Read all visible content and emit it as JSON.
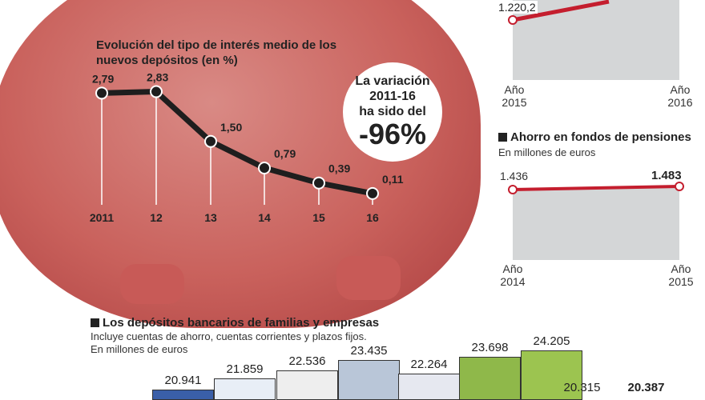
{
  "colors": {
    "line_dark": "#1e1e1e",
    "line_red": "#c41e2e",
    "panel_gray": "#d4d6d7",
    "pig_pink": "#c9615c"
  },
  "chart_data": [
    {
      "type": "line",
      "title": "Evolución del tipo de interés medio de los nuevos depósitos (en %)",
      "categories": [
        "2011",
        "12",
        "13",
        "14",
        "15",
        "16"
      ],
      "values": [
        2.79,
        2.83,
        1.5,
        0.79,
        0.39,
        0.11
      ],
      "labels": [
        "2,79",
        "2,83",
        "1,50",
        "0,79",
        "0,39",
        "0,11"
      ]
    },
    {
      "type": "area",
      "categories": [
        "Año 2015",
        "Año 2016"
      ],
      "labels": [
        "1.220,2"
      ],
      "values": [
        1220.2,
        null
      ]
    },
    {
      "type": "area",
      "title": "Ahorro en fondos de pensiones",
      "subtitle": "En millones de euros",
      "categories": [
        "Año 2014",
        "Año 2015"
      ],
      "values": [
        1436,
        1483
      ],
      "labels": [
        "1.436",
        "1.483"
      ]
    },
    {
      "type": "bar",
      "title": "Los depósitos bancarios de familias y empresas",
      "subtitle": "Incluye cuentas de ahorro, cuentas corrientes y plazos fijos.",
      "unit": "En millones de euros",
      "values": [
        20941,
        21859,
        22536,
        23435,
        22264,
        23698,
        24205,
        20315,
        20387
      ],
      "labels": [
        "20.941",
        "21.859",
        "22.536",
        "23.435",
        "22.264",
        "23.698",
        "24.205",
        "20.315",
        "20.387"
      ]
    }
  ],
  "callout": {
    "line1": "La variación",
    "line2": "2011-16",
    "line3": "ha sido del",
    "value": "-96%"
  }
}
